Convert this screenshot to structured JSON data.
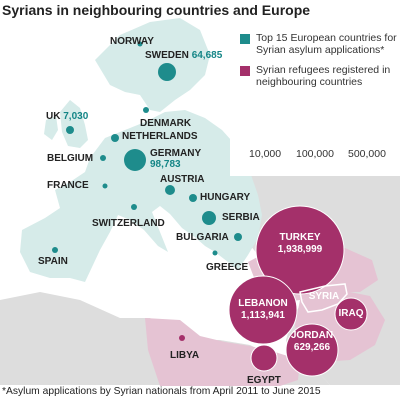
{
  "title": "Syrians in neighbouring countries and Europe",
  "legend": {
    "europe_label": "Top 15 European countries for Syrian asylum applications*",
    "refugee_label": "Syrian refugees registered in neighbouring countries",
    "size_labels": [
      "10,000",
      "100,000",
      "500,000"
    ]
  },
  "colors": {
    "europe": "#1e8c8c",
    "refugee": "#a4306a",
    "europe_land": "#d6ebe9",
    "refugee_land": "#e5c3d3",
    "other_land": "#dddddd",
    "sea": "#ffffff",
    "label_value": "#138586"
  },
  "europe": [
    {
      "country": "NORWAY",
      "value": ""
    },
    {
      "country": "SWEDEN",
      "value": "64,685"
    },
    {
      "country": "DENMARK",
      "value": ""
    },
    {
      "country": "UK",
      "value": "7,030"
    },
    {
      "country": "NETHERLANDS",
      "value": ""
    },
    {
      "country": "BELGIUM",
      "value": ""
    },
    {
      "country": "GERMANY",
      "value": "98,783"
    },
    {
      "country": "FRANCE",
      "value": ""
    },
    {
      "country": "AUSTRIA",
      "value": ""
    },
    {
      "country": "HUNGARY",
      "value": ""
    },
    {
      "country": "SWITZERLAND",
      "value": ""
    },
    {
      "country": "SERBIA",
      "value": ""
    },
    {
      "country": "BULGARIA",
      "value": ""
    },
    {
      "country": "SPAIN",
      "value": ""
    },
    {
      "country": "GREECE",
      "value": ""
    }
  ],
  "neighbours": [
    {
      "country": "TURKEY",
      "value": "1,938,999"
    },
    {
      "country": "LEBANON",
      "value": "1,113,941"
    },
    {
      "country": "JORDAN",
      "value": "629,266"
    },
    {
      "country": "IRAQ",
      "value": ""
    },
    {
      "country": "EGYPT",
      "value": ""
    },
    {
      "country": "LIBYA",
      "value": ""
    }
  ],
  "syria_label": "SYRIA",
  "footnote": "*Asylum applications by Syrian nationals from April 2011 to June 2015"
}
